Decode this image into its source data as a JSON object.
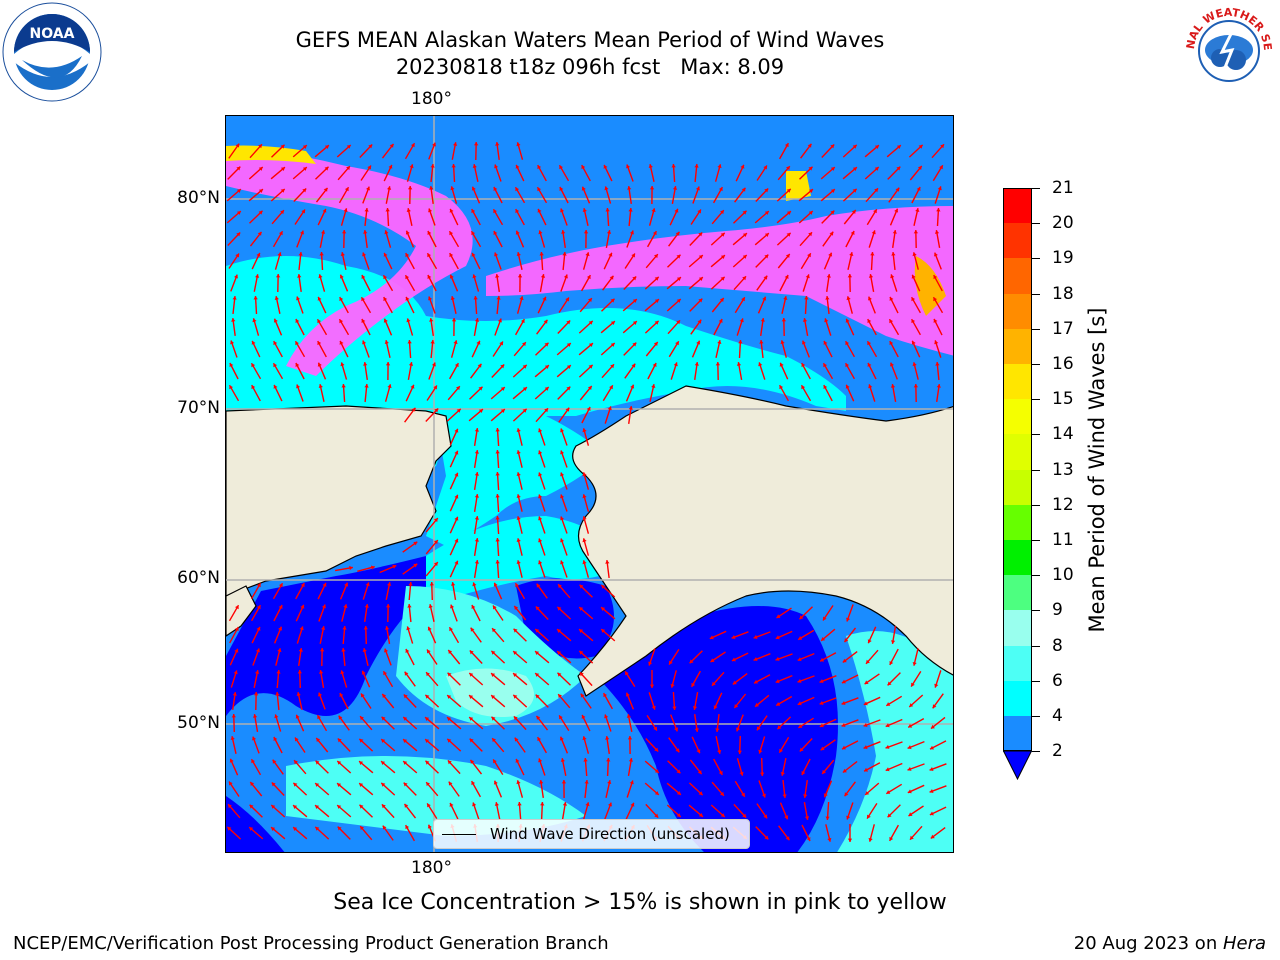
{
  "title": {
    "line1": "GEFS MEAN Alaskan Waters Mean Period of Wind Waves",
    "line2": "20230818 t18z 096h fcst   Max: 8.09"
  },
  "map": {
    "top_lon_label": "180°",
    "bottom_lon_label": "180°",
    "lat_labels": [
      "80°N",
      "70°N",
      "60°N",
      "50°N"
    ],
    "land_color": "#efecda",
    "arrow_color": "#ff0000",
    "legend_text": "Wind Wave Direction (unscaled)"
  },
  "colorbar": {
    "label": "Mean Period of Wind Waves [s]",
    "tick_labels": [
      "21",
      "20",
      "19",
      "18",
      "17",
      "16",
      "15",
      "14",
      "13",
      "12",
      "11",
      "10",
      "9",
      "8",
      "6",
      "4",
      "2"
    ],
    "bands": [
      {
        "from": 20,
        "to": 21,
        "color": "#ff0000"
      },
      {
        "from": 19,
        "to": 20,
        "color": "#ff3300"
      },
      {
        "from": 18,
        "to": 19,
        "color": "#ff6600"
      },
      {
        "from": 17,
        "to": 18,
        "color": "#ff8c00"
      },
      {
        "from": 16,
        "to": 17,
        "color": "#ffb300"
      },
      {
        "from": 15,
        "to": 16,
        "color": "#ffe600"
      },
      {
        "from": 14,
        "to": 15,
        "color": "#f5ff00"
      },
      {
        "from": 13,
        "to": 14,
        "color": "#e0ff00"
      },
      {
        "from": 12,
        "to": 13,
        "color": "#c8ff00"
      },
      {
        "from": 11,
        "to": 12,
        "color": "#66ff00"
      },
      {
        "from": 10,
        "to": 11,
        "color": "#00f000"
      },
      {
        "from": 9,
        "to": 10,
        "color": "#4dff80"
      },
      {
        "from": 8,
        "to": 9,
        "color": "#99ffee"
      },
      {
        "from": 6,
        "to": 8,
        "color": "#4dfff5"
      },
      {
        "from": 4,
        "to": 6,
        "color": "#00ffff"
      },
      {
        "from": 2,
        "to": 4,
        "color": "#1a8cff"
      },
      {
        "from": 0,
        "to": 2,
        "color": "#0000ff"
      }
    ],
    "sea_ice_color_low": "#ff66ff",
    "sea_ice_color_high": "#ffee00"
  },
  "note": "Sea Ice Concentration > 15% is shown in pink to yellow",
  "footer": {
    "left": "NCEP/EMC/Verification Post Processing Product Generation Branch",
    "date": "20 Aug 2023 on ",
    "host": "Hera"
  },
  "logos": {
    "noaa_text": "NOAA",
    "nws_text": "NATIONAL WEATHER SERVICE"
  },
  "icons": [
    "noaa-logo-icon",
    "nws-logo-icon"
  ]
}
